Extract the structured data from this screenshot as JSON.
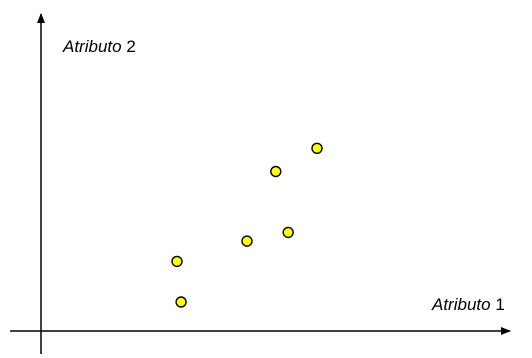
{
  "chart_data": {
    "type": "scatter",
    "title": "",
    "xlabel": {
      "word": "Atributo",
      "index": "1"
    },
    "ylabel": {
      "word": "Atributo",
      "index": "2"
    },
    "tick_labels": "none",
    "grid": false,
    "legend": "none",
    "colors": {
      "axis": "#000000",
      "marker_fill": "#ffff00",
      "marker_stroke": "#000000"
    },
    "series": [
      {
        "points": [
          {
            "x": 3.3,
            "y": 2.4
          },
          {
            "x": 3.4,
            "y": 1.0
          },
          {
            "x": 5.0,
            "y": 3.1
          },
          {
            "x": 5.7,
            "y": 5.5
          },
          {
            "x": 6.0,
            "y": 3.4
          },
          {
            "x": 6.7,
            "y": 6.3
          }
        ]
      }
    ]
  }
}
